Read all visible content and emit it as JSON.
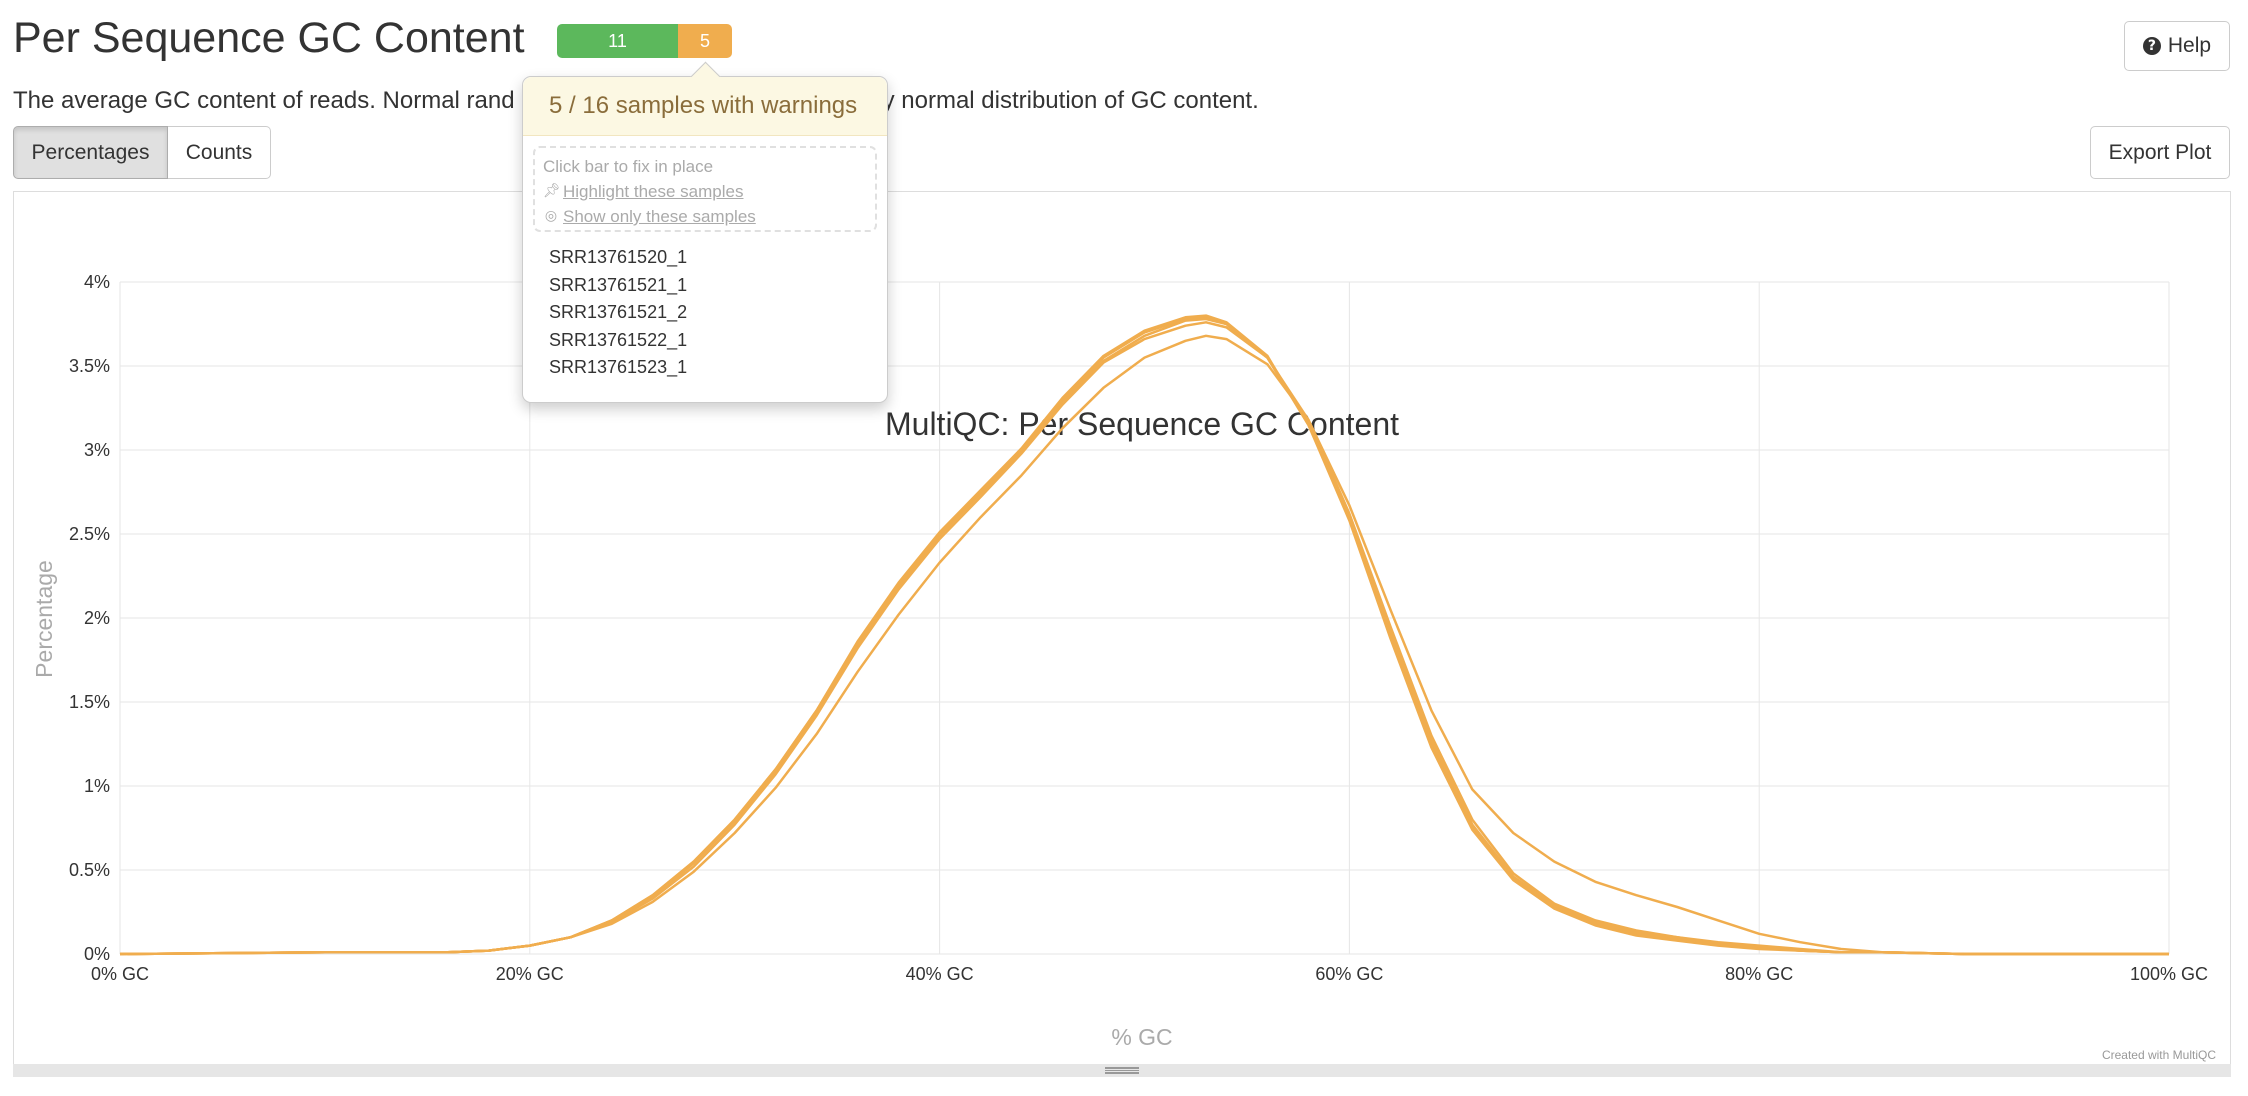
{
  "section": {
    "title": "Per Sequence GC Content",
    "description": "The average GC content of reads. Normal rand",
    "description_tail": "y normal distribution of GC content."
  },
  "status": {
    "pass_count": "11",
    "warn_count": "5",
    "pass_color": "#5cb85c",
    "warn_color": "#f0ad4e"
  },
  "help_button": {
    "label": "Help",
    "icon": "question-circle-icon"
  },
  "toggles": {
    "percentages_label": "Percentages",
    "counts_label": "Counts",
    "active": "Percentages"
  },
  "export_button": {
    "label": "Export Plot"
  },
  "popover": {
    "title": "5 / 16 samples with warnings",
    "hint": "Click bar to fix in place",
    "highlight_label": " Highlight these samples",
    "highlight_icon": "pushpin-icon",
    "show_only_label": "Show only these samples",
    "show_only_icon": "eye-slash-icon",
    "samples": [
      "SRR13761520_1",
      "SRR13761521_1",
      "SRR13761521_2",
      "SRR13761522_1",
      "SRR13761523_1"
    ]
  },
  "plot": {
    "credit": "Created with MultiQC"
  },
  "chart_data": {
    "type": "line",
    "title": "MultiQC: Per Sequence GC Content",
    "xlabel": "% GC",
    "ylabel": "Percentage",
    "xlim": [
      0,
      100
    ],
    "ylim": [
      0,
      4
    ],
    "x_ticks": [
      "0% GC",
      "20% GC",
      "40% GC",
      "60% GC",
      "80% GC",
      "100% GC"
    ],
    "y_ticks": [
      "0%",
      "0.5%",
      "1%",
      "1.5%",
      "2%",
      "2.5%",
      "3%",
      "3.5%",
      "4%"
    ],
    "grid": true,
    "line_color": "#f0ad4e",
    "x": [
      0,
      10,
      16,
      18,
      20,
      22,
      24,
      26,
      28,
      30,
      32,
      34,
      36,
      38,
      40,
      42,
      44,
      46,
      48,
      50,
      52,
      53,
      54,
      56,
      58,
      60,
      62,
      64,
      66,
      68,
      70,
      72,
      74,
      76,
      78,
      80,
      82,
      84,
      86,
      90,
      100
    ],
    "series": [
      {
        "values": [
          0,
          0.01,
          0.01,
          0.02,
          0.05,
          0.1,
          0.2,
          0.35,
          0.55,
          0.8,
          1.1,
          1.45,
          1.85,
          2.2,
          2.5,
          2.75,
          3.0,
          3.3,
          3.55,
          3.7,
          3.78,
          3.79,
          3.75,
          3.55,
          3.15,
          2.6,
          1.9,
          1.25,
          0.75,
          0.45,
          0.28,
          0.18,
          0.12,
          0.09,
          0.06,
          0.04,
          0.02,
          0.01,
          0.01,
          0,
          0
        ]
      },
      {
        "values": [
          0,
          0.01,
          0.01,
          0.02,
          0.05,
          0.1,
          0.19,
          0.33,
          0.52,
          0.77,
          1.07,
          1.42,
          1.82,
          2.17,
          2.47,
          2.72,
          2.98,
          3.27,
          3.52,
          3.66,
          3.74,
          3.76,
          3.73,
          3.55,
          3.18,
          2.62,
          1.95,
          1.3,
          0.8,
          0.48,
          0.3,
          0.2,
          0.14,
          0.1,
          0.07,
          0.05,
          0.03,
          0.01,
          0.01,
          0,
          0
        ]
      },
      {
        "values": [
          0,
          0.01,
          0.01,
          0.02,
          0.05,
          0.1,
          0.18,
          0.31,
          0.49,
          0.72,
          0.99,
          1.31,
          1.68,
          2.02,
          2.33,
          2.6,
          2.85,
          3.13,
          3.37,
          3.55,
          3.65,
          3.68,
          3.66,
          3.51,
          3.18,
          2.67,
          2.05,
          1.45,
          0.98,
          0.72,
          0.55,
          0.43,
          0.35,
          0.28,
          0.2,
          0.12,
          0.07,
          0.03,
          0.01,
          0,
          0
        ]
      },
      {
        "values": [
          0,
          0.01,
          0.01,
          0.02,
          0.05,
          0.1,
          0.2,
          0.34,
          0.54,
          0.79,
          1.09,
          1.44,
          1.84,
          2.19,
          2.49,
          2.74,
          2.99,
          3.29,
          3.53,
          3.68,
          3.77,
          3.78,
          3.75,
          3.55,
          3.16,
          2.6,
          1.92,
          1.27,
          0.77,
          0.46,
          0.29,
          0.19,
          0.13,
          0.1,
          0.06,
          0.04,
          0.02,
          0.01,
          0.01,
          0,
          0
        ]
      },
      {
        "values": [
          0,
          0.01,
          0.01,
          0.02,
          0.05,
          0.1,
          0.2,
          0.35,
          0.55,
          0.8,
          1.1,
          1.45,
          1.86,
          2.21,
          2.51,
          2.76,
          3.01,
          3.31,
          3.56,
          3.71,
          3.79,
          3.8,
          3.76,
          3.56,
          3.15,
          2.58,
          1.88,
          1.23,
          0.74,
          0.44,
          0.27,
          0.17,
          0.11,
          0.08,
          0.05,
          0.03,
          0.02,
          0.01,
          0.01,
          0,
          0
        ]
      }
    ]
  }
}
